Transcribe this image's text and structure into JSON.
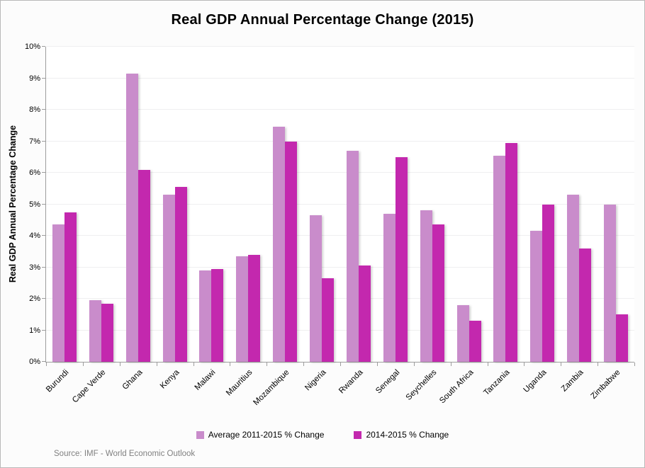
{
  "title": "Real GDP Annual Percentage Change (2015)",
  "y_axis_title": "Real GDP Annual Percentage Change",
  "source_note": "Source: IMF - World Economic Outlook",
  "colors": {
    "series_average": "#c98ccb",
    "series_latest": "#c328ae",
    "gridline": "#efeff0",
    "axis_line": "#9d9d9d",
    "source_text": "#808080",
    "title_text": "#000000"
  },
  "chart_data": {
    "type": "bar",
    "title": "Real GDP Annual Percentage Change (2015)",
    "xlabel": "",
    "ylabel": "Real GDP Annual Percentage Change",
    "ylim": [
      0,
      10
    ],
    "ytick_step": 1,
    "yticks": [
      "0%",
      "1%",
      "2%",
      "3%",
      "4%",
      "5%",
      "6%",
      "7%",
      "8%",
      "9%",
      "10%"
    ],
    "grid": true,
    "legend_position": "bottom",
    "categories": [
      "Burundi",
      "Cape Verde",
      "Ghana",
      "Kenya",
      "Malawi",
      "Mauritius",
      "Mozambique",
      "Nigeria",
      "Rwanda",
      "Senegal",
      "Seychelles",
      "South Africa",
      "Tanzania",
      "Uganda",
      "Zambia",
      "Zimbabwe"
    ],
    "series": [
      {
        "name": "Average 2011-2015 % Change",
        "color": "#c98ccb",
        "values": [
          4.35,
          1.95,
          9.15,
          5.3,
          2.9,
          3.35,
          7.45,
          4.65,
          6.7,
          4.7,
          4.8,
          1.8,
          6.55,
          4.15,
          5.3,
          5.0
        ]
      },
      {
        "name": "2014-2015 % Change",
        "color": "#c328ae",
        "values": [
          4.75,
          1.85,
          6.1,
          5.55,
          2.95,
          3.4,
          7.0,
          2.65,
          3.05,
          6.5,
          4.35,
          1.3,
          6.95,
          5.0,
          3.6,
          1.5
        ]
      }
    ]
  }
}
